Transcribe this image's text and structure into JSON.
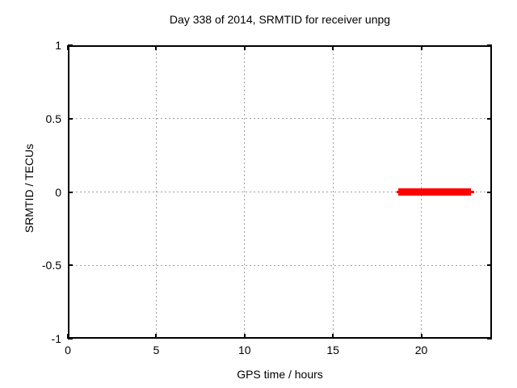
{
  "window": {
    "background_color": "#ffffff"
  },
  "chart_data": {
    "type": "line",
    "title": "Day 338 of 2014, SRMTID for receiver unpg",
    "xlabel": "GPS time / hours",
    "ylabel": "SRMTID / TECUs",
    "xlim": [
      0,
      24
    ],
    "ylim": [
      -1,
      1
    ],
    "x_ticks": [
      0,
      5,
      10,
      15,
      20
    ],
    "x_tick_labels": [
      "0",
      "5",
      "10",
      "15",
      "20"
    ],
    "y_ticks": [
      -1,
      -0.5,
      0,
      0.5,
      1
    ],
    "y_tick_labels": [
      "-1",
      "-0.5",
      "0",
      "0.5",
      "1"
    ],
    "grid": true,
    "grid_color": "#a0a0a0",
    "border_color": "#000000",
    "text_color": "#000000",
    "series": [
      {
        "name": "SRMTID",
        "color": "#ff0000",
        "style": "thick horizontal segment at constant value",
        "segments": [
          {
            "x_start": 18.6,
            "x_end": 23.0,
            "y": 0,
            "thickness_px": 3
          },
          {
            "x_start": 18.7,
            "x_end": 22.8,
            "y": 0,
            "thickness_px": 9
          }
        ]
      }
    ]
  }
}
